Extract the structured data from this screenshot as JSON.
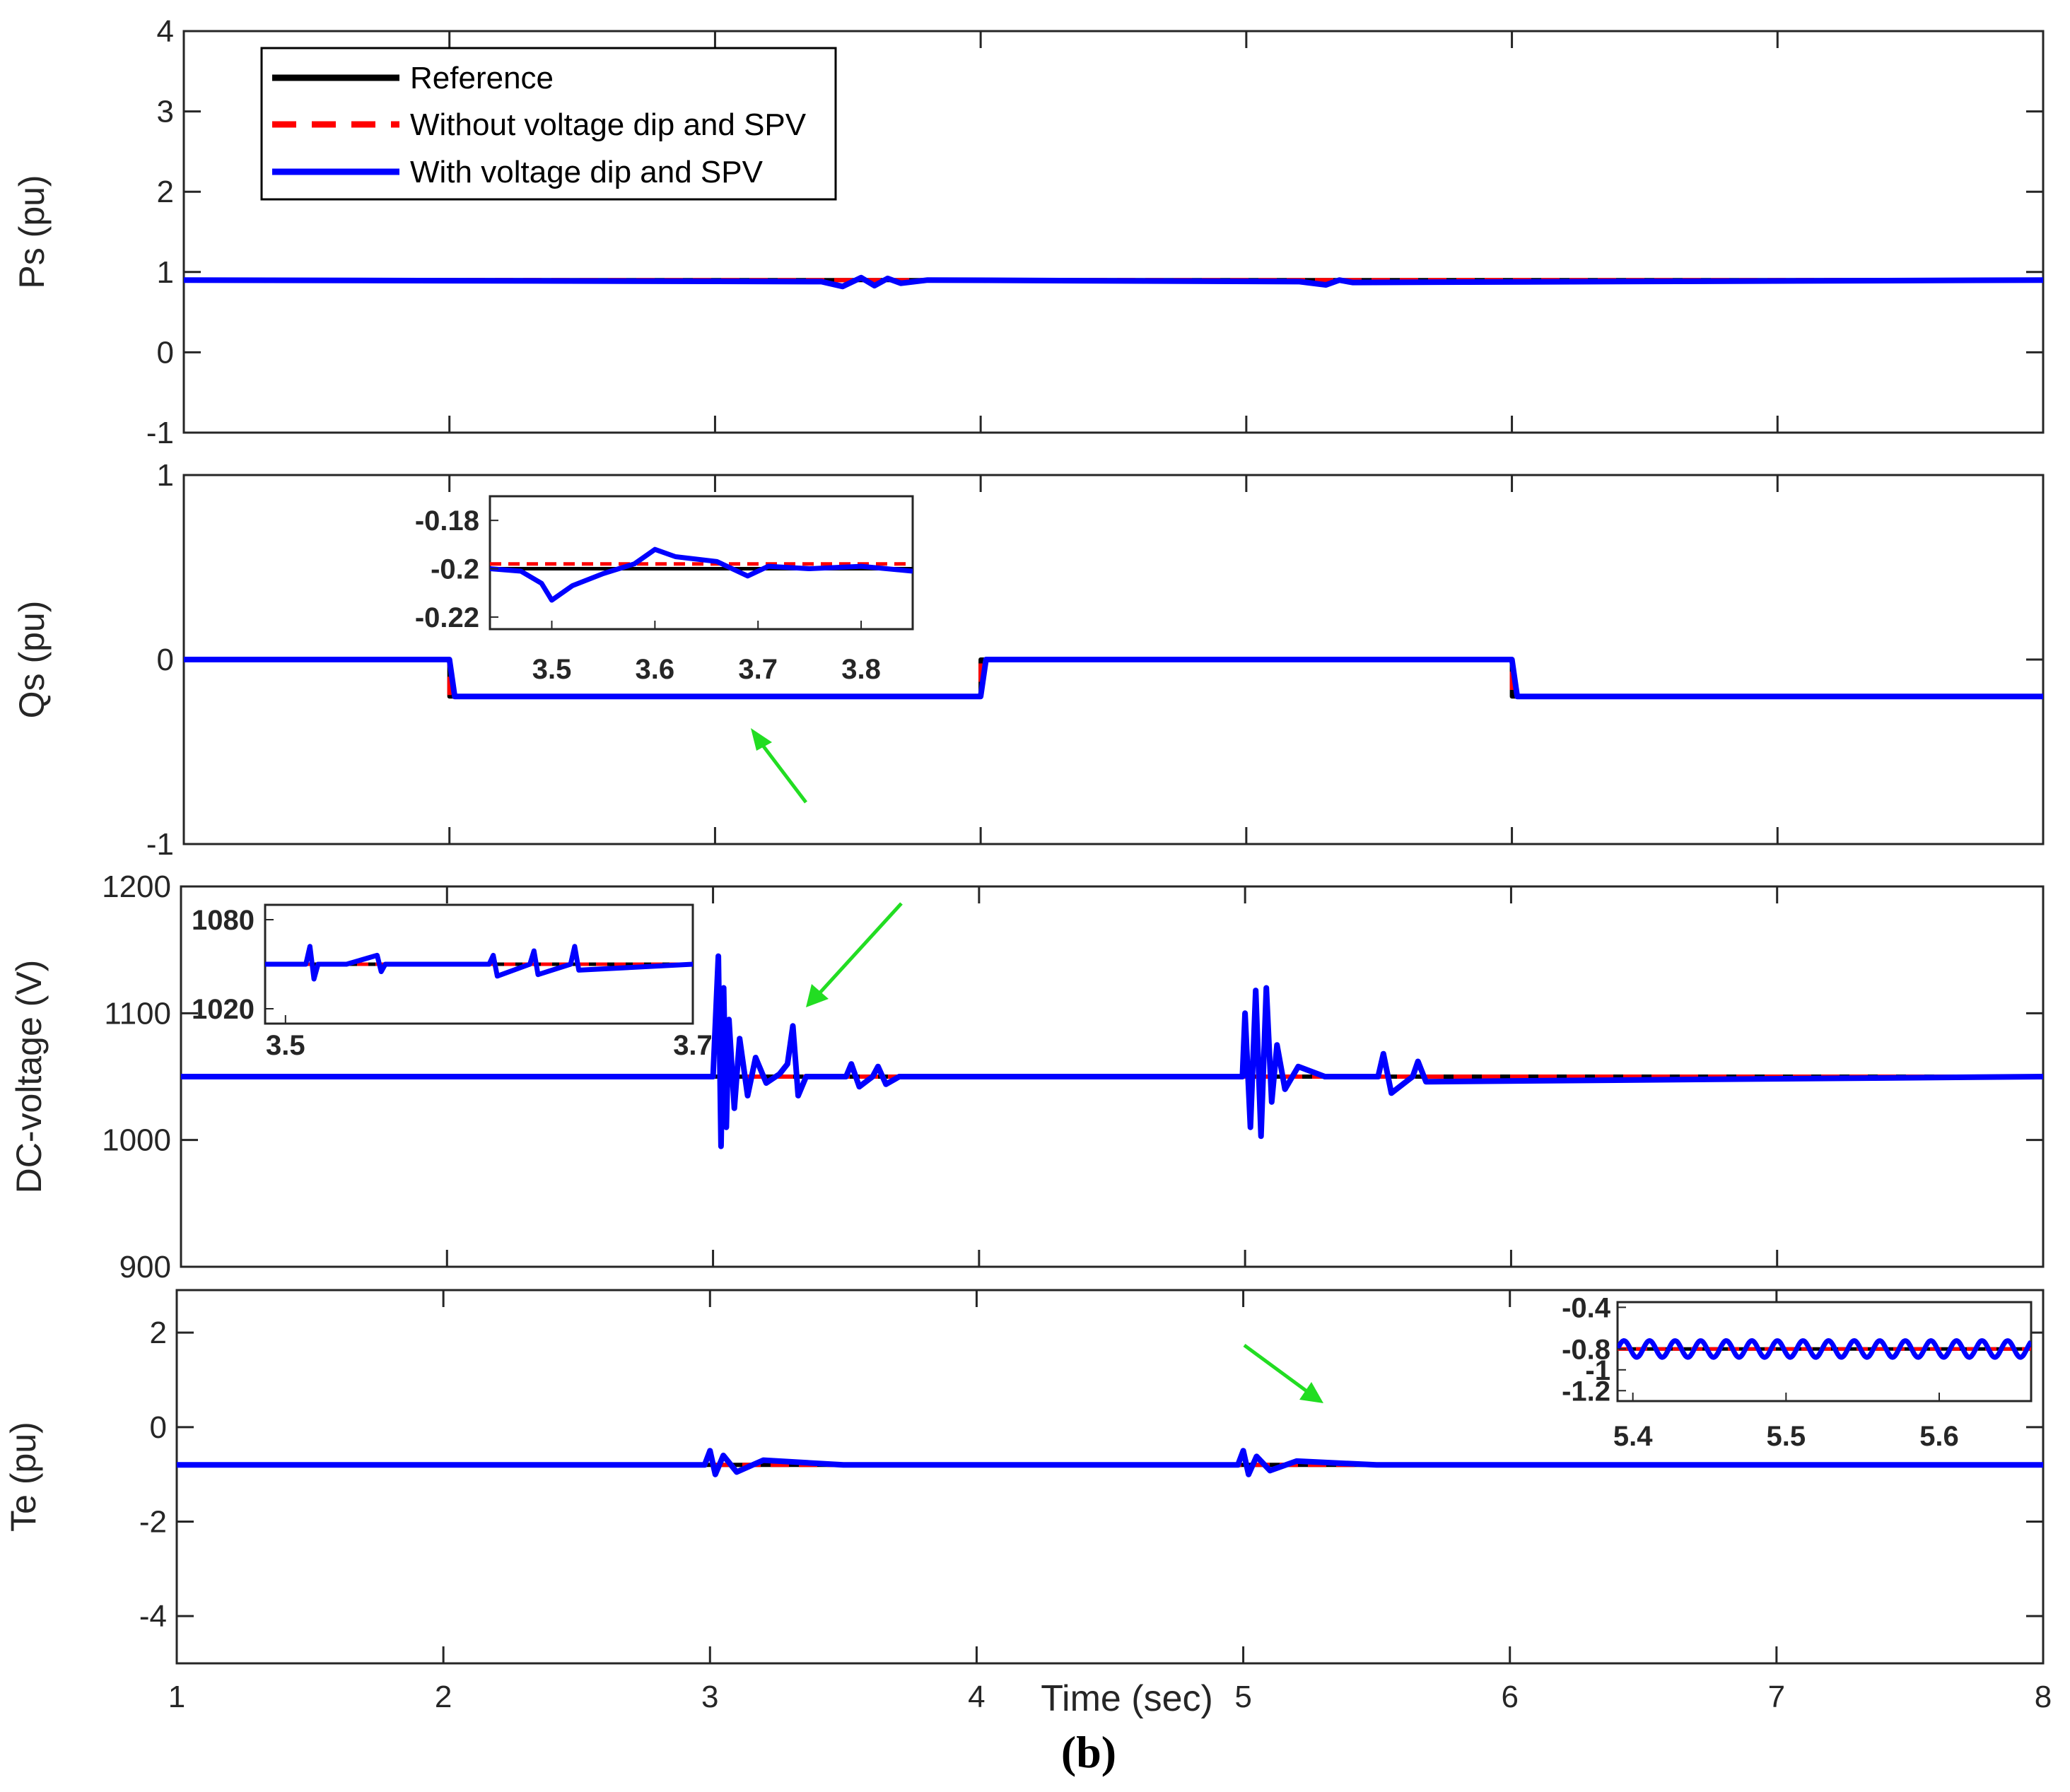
{
  "caption": "(b)",
  "legend": [
    {
      "label": "Reference",
      "color": "#000000",
      "style": "solid"
    },
    {
      "label": "Without voltage dip and SPV",
      "color": "#ff0000",
      "style": "dashed"
    },
    {
      "label": "With voltage dip and SPV",
      "color": "#0000ff",
      "style": "solid"
    }
  ],
  "chart_data": [
    {
      "type": "line",
      "ylabel": "Ps (pu)",
      "xlim": [
        1,
        8
      ],
      "ylim": [
        -1,
        4
      ],
      "yticks": [
        -1,
        0,
        1,
        2,
        3,
        4
      ],
      "yticklabels": [
        "-1",
        "0",
        "1",
        "2",
        "3",
        "4"
      ],
      "series": [
        {
          "name": "Reference",
          "x": [
            1,
            8
          ],
          "y": [
            0.9,
            0.9
          ]
        },
        {
          "name": "Without voltage dip and SPV",
          "x": [
            1,
            8
          ],
          "y": [
            0.9,
            0.9
          ]
        },
        {
          "name": "With voltage dip and SPV",
          "x": [
            1,
            3.4,
            3.48,
            3.55,
            3.6,
            3.65,
            3.7,
            3.8,
            5.2,
            5.3,
            5.35,
            5.4,
            8
          ],
          "y": [
            0.9,
            0.88,
            0.82,
            0.93,
            0.83,
            0.92,
            0.86,
            0.9,
            0.88,
            0.84,
            0.9,
            0.87,
            0.9
          ]
        }
      ]
    },
    {
      "type": "line",
      "ylabel": "Qs (pu)",
      "xlim": [
        1,
        8
      ],
      "ylim": [
        -1,
        1
      ],
      "yticks": [
        -1,
        0,
        1
      ],
      "yticklabels": [
        "-1",
        "0",
        "1"
      ],
      "series": [
        {
          "name": "Reference",
          "x": [
            1,
            2,
            2,
            4,
            4,
            6,
            6,
            8
          ],
          "y": [
            0,
            0,
            -0.2,
            -0.2,
            0,
            0,
            -0.2,
            -0.2
          ]
        },
        {
          "name": "Without voltage dip and SPV",
          "x": [
            1,
            2,
            2,
            4,
            4,
            6,
            6,
            8
          ],
          "y": [
            0,
            0,
            -0.2,
            -0.2,
            0,
            0,
            -0.2,
            -0.2
          ]
        },
        {
          "name": "With voltage dip and SPV",
          "x": [
            1,
            2,
            2.02,
            4,
            4.02,
            6,
            6.02,
            8
          ],
          "y": [
            0,
            0,
            -0.2,
            -0.2,
            0,
            0,
            -0.2,
            -0.2
          ]
        }
      ],
      "inset": {
        "xlim": [
          3.44,
          3.85
        ],
        "ylim": [
          -0.225,
          -0.17
        ],
        "xticks": [
          3.5,
          3.6,
          3.7,
          3.8
        ],
        "xticklabels": [
          "3.5",
          "3.6",
          "3.7",
          "3.8"
        ],
        "yticks": [
          -0.18,
          -0.2,
          -0.22
        ],
        "yticklabels": [
          "-0.18",
          "-0.2",
          "-0.22"
        ],
        "series": [
          {
            "name": "Reference",
            "x": [
              3.44,
              3.85
            ],
            "y": [
              -0.2,
              -0.2
            ]
          },
          {
            "name": "Without voltage dip and SPV",
            "x": [
              3.44,
              3.85
            ],
            "y": [
              -0.198,
              -0.198
            ]
          },
          {
            "name": "With voltage dip and SPV",
            "x": [
              3.44,
              3.47,
              3.49,
              3.5,
              3.52,
              3.55,
              3.58,
              3.6,
              3.62,
              3.66,
              3.68,
              3.69,
              3.71,
              3.75,
              3.8,
              3.85
            ],
            "y": [
              -0.2,
              -0.201,
              -0.206,
              -0.213,
              -0.207,
              -0.202,
              -0.198,
              -0.192,
              -0.195,
              -0.197,
              -0.201,
              -0.203,
              -0.199,
              -0.2,
              -0.199,
              -0.201
            ]
          }
        ]
      }
    },
    {
      "type": "line",
      "ylabel": "DC-voltage (V)",
      "xlim": [
        1,
        8
      ],
      "ylim": [
        900,
        1200
      ],
      "yticks": [
        900,
        1000,
        1100,
        1200
      ],
      "yticklabels": [
        "900",
        "1000",
        "1100",
        "1200"
      ],
      "series": [
        {
          "name": "Reference",
          "x": [
            1,
            8
          ],
          "y": [
            1050,
            1050
          ]
        },
        {
          "name": "Without voltage dip and SPV",
          "x": [
            1,
            8
          ],
          "y": [
            1050,
            1050
          ]
        },
        {
          "name": "With voltage dip and SPV",
          "x": [
            1,
            3.0,
            3.02,
            3.03,
            3.04,
            3.05,
            3.06,
            3.08,
            3.1,
            3.13,
            3.16,
            3.2,
            3.25,
            3.28,
            3.3,
            3.32,
            3.35,
            3.5,
            3.52,
            3.55,
            3.6,
            3.62,
            3.65,
            3.7,
            4.99,
            5.0,
            5.02,
            5.04,
            5.06,
            5.08,
            5.1,
            5.12,
            5.15,
            5.2,
            5.3,
            5.5,
            5.52,
            5.55,
            5.63,
            5.65,
            5.68,
            8
          ],
          "y": [
            1050,
            1050,
            1145,
            995,
            1120,
            1010,
            1095,
            1025,
            1080,
            1035,
            1065,
            1045,
            1052,
            1060,
            1090,
            1035,
            1050,
            1050,
            1060,
            1042,
            1050,
            1058,
            1044,
            1050,
            1050,
            1100,
            1010,
            1118,
            1003,
            1120,
            1030,
            1075,
            1040,
            1058,
            1050,
            1050,
            1068,
            1037,
            1050,
            1062,
            1046,
            1050
          ]
        }
      ],
      "inset": {
        "xlim": [
          3.49,
          3.7
        ],
        "ylim": [
          1010,
          1090
        ],
        "xticks": [
          3.5,
          3.7
        ],
        "xticklabels": [
          "3.5",
          "3.7"
        ],
        "yticks": [
          1080,
          1020
        ],
        "yticklabels": [
          "1080",
          "1020"
        ],
        "series": [
          {
            "name": "Reference",
            "x": [
              3.49,
              3.7
            ],
            "y": [
              1050,
              1050
            ]
          },
          {
            "name": "Without voltage dip and SPV",
            "x": [
              3.49,
              3.7
            ],
            "y": [
              1050,
              1050
            ]
          },
          {
            "name": "With voltage dip and SPV",
            "x": [
              3.49,
              3.51,
              3.512,
              3.514,
              3.516,
              3.53,
              3.545,
              3.547,
              3.549,
              3.6,
              3.602,
              3.604,
              3.62,
              3.622,
              3.624,
              3.64,
              3.642,
              3.644,
              3.7
            ],
            "y": [
              1050,
              1050,
              1062,
              1040,
              1050,
              1050,
              1056,
              1045,
              1050,
              1050,
              1056,
              1042,
              1050,
              1059,
              1043,
              1050,
              1062,
              1046,
              1050
            ]
          }
        ]
      }
    },
    {
      "type": "line",
      "ylabel": "Te (pu)",
      "xlabel": "Time (sec)",
      "xlim": [
        1,
        8
      ],
      "ylim": [
        -5,
        2.9
      ],
      "yticks": [
        -4,
        -2,
        0,
        2
      ],
      "yticklabels": [
        "-4",
        "-2",
        "0",
        "2"
      ],
      "xticks": [
        1,
        2,
        3,
        4,
        5,
        6,
        7,
        8
      ],
      "xticklabels": [
        "1",
        "2",
        "3",
        "4",
        "5",
        "6",
        "7",
        "8"
      ],
      "series": [
        {
          "name": "Reference",
          "x": [
            1,
            8
          ],
          "y": [
            -0.8,
            -0.8
          ]
        },
        {
          "name": "Without voltage dip and SPV",
          "x": [
            1,
            8
          ],
          "y": [
            -0.8,
            -0.8
          ]
        },
        {
          "name": "With voltage dip and SPV",
          "x": [
            1,
            2.98,
            3.0,
            3.02,
            3.05,
            3.1,
            3.2,
            3.5,
            4.98,
            5.0,
            5.02,
            5.05,
            5.1,
            5.2,
            5.5,
            8
          ],
          "y": [
            -0.8,
            -0.8,
            -0.5,
            -1.0,
            -0.6,
            -0.95,
            -0.7,
            -0.8,
            -0.8,
            -0.5,
            -1.0,
            -0.62,
            -0.92,
            -0.72,
            -0.8,
            -0.8
          ]
        }
      ],
      "inset": {
        "xlim": [
          5.39,
          5.66
        ],
        "ylim": [
          -1.3,
          -0.35
        ],
        "xticks": [
          5.4,
          5.5,
          5.6
        ],
        "xticklabels": [
          "5.4",
          "5.5",
          "5.6"
        ],
        "yticks": [
          -0.4,
          -0.8,
          -1,
          -1.2
        ],
        "yticklabels": [
          "-0.4",
          "-0.8",
          "-1",
          "-1.2"
        ],
        "series": [
          {
            "name": "Reference",
            "x": [
              5.39,
              5.66
            ],
            "y": [
              -0.8,
              -0.8
            ]
          },
          {
            "name": "Without voltage dip and SPV",
            "x": [
              5.39,
              5.66
            ],
            "y": [
              -0.8,
              -0.8
            ]
          },
          {
            "name": "With voltage dip and SPV",
            "wave": {
              "x0": 5.39,
              "x1": 5.66,
              "mean": -0.8,
              "amp": 0.08,
              "period": 0.0167
            }
          }
        ]
      }
    }
  ]
}
